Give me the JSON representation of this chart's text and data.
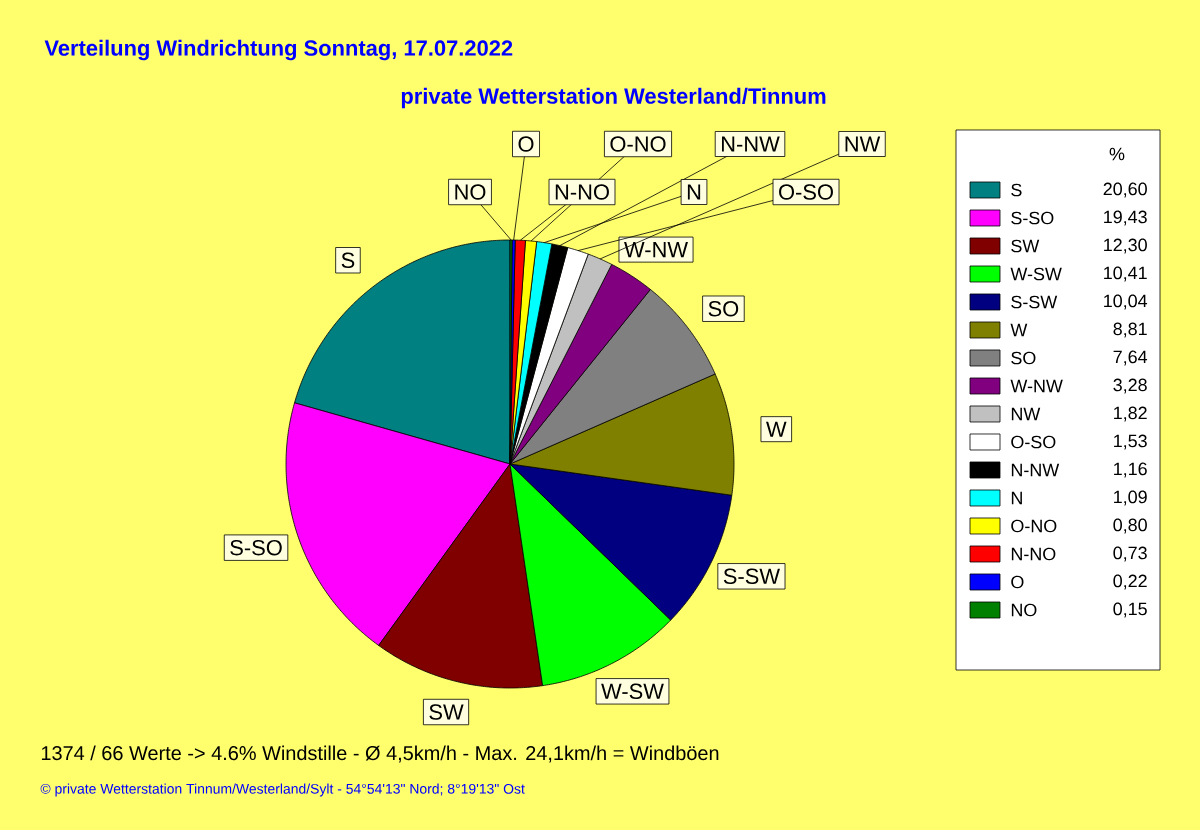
{
  "chart_data": {
    "type": "pie",
    "title": "Verteilung Windrichtung   Sonntag, 17.07.2022",
    "subtitle": "private Wetterstation Westerland/Tinnum",
    "categories": [
      "S",
      "S-SO",
      "SW",
      "W-SW",
      "S-SW",
      "W",
      "SO",
      "W-NW",
      "NW",
      "O-SO",
      "N-NW",
      "N",
      "O-NO",
      "N-NO",
      "O",
      "NO"
    ],
    "values": [
      20.6,
      19.43,
      12.3,
      10.41,
      10.04,
      8.81,
      7.64,
      3.28,
      1.82,
      1.53,
      1.16,
      1.09,
      0.8,
      0.73,
      0.22,
      0.15
    ],
    "colors": [
      "#008080",
      "#ff00ff",
      "#800000",
      "#00ff00",
      "#000080",
      "#808000",
      "#808080",
      "#800080",
      "#c0c0c0",
      "#ffffff",
      "#000000",
      "#00ffff",
      "#ffff00",
      "#ff0000",
      "#0000ff",
      "#008000"
    ],
    "value_labels": [
      "20,60",
      "19,43",
      "12,30",
      "10,41",
      "10,04",
      "8,81",
      "7,64",
      "3,28",
      "1,82",
      "1,53",
      "1,16",
      "1,09",
      "0,80",
      "0,73",
      "0,22",
      "0,15"
    ],
    "legend": "right",
    "legend_title": "%",
    "annotations": [
      "1374 / 66 Werte  -> 4.6% Windstille   -   Ø 4,5km/h  -  Max. 24,1km/h = Windböen",
      "© private Wetterstation Tinnum/Westerland/Sylt   -   54°54'13\" Nord; 8°19'13\" Ost"
    ]
  }
}
